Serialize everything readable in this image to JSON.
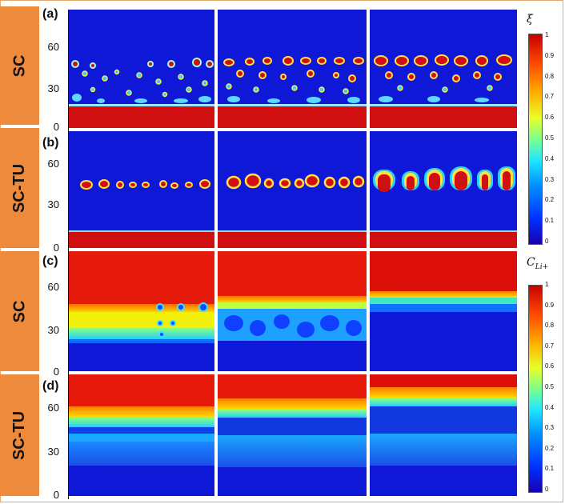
{
  "rows": [
    {
      "panel": "(a)",
      "label": "SC",
      "ticks": [
        "60",
        "30",
        "0"
      ]
    },
    {
      "panel": "(b)",
      "label": "SC-TU",
      "ticks": [
        "60",
        "30",
        "0"
      ]
    },
    {
      "panel": "(c)",
      "label": "SC",
      "ticks": [
        "60",
        "30",
        "0"
      ]
    },
    {
      "panel": "(d)",
      "label": "SC-TU",
      "ticks": [
        "60",
        "30",
        "0"
      ]
    }
  ],
  "colorbars": [
    {
      "symbol": "ξ",
      "subscript": "",
      "ticks": [
        "1",
        "0.9",
        "0.8",
        "0.7",
        "0.6",
        "0.5",
        "0.4",
        "0.3",
        "0.2",
        "0.1",
        "0"
      ]
    },
    {
      "symbol": "C",
      "subscript": "Li+",
      "ticks": [
        "1",
        "0.9",
        "0.8",
        "0.7",
        "0.6",
        "0.5",
        "0.4",
        "0.3",
        "0.2",
        "0.1",
        "0"
      ]
    }
  ],
  "colors": {
    "deep_blue": "#1018d8",
    "red": "#d01010",
    "sidebar": "#ee8a3c"
  }
}
